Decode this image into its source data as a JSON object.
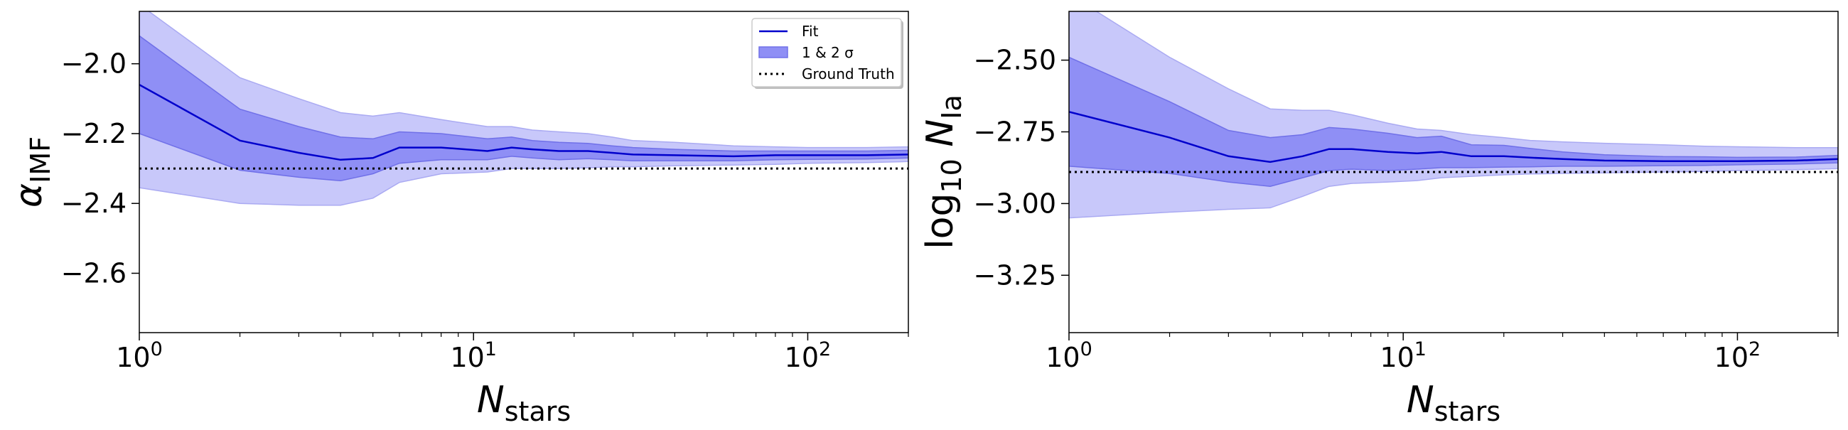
{
  "chart_data": [
    {
      "type": "line",
      "xlabel": "N_stars",
      "ylabel": "α_IMF",
      "x_scale": "log",
      "xlim": [
        1,
        200
      ],
      "ylim": [
        -2.77,
        -1.85
      ],
      "x_ticks": [
        1,
        10,
        100
      ],
      "x_tick_labels": [
        "10^0",
        "10^1",
        "10^2"
      ],
      "y_ticks": [
        -2.0,
        -2.2,
        -2.4,
        -2.6
      ],
      "y_tick_labels": [
        "−2.0",
        "−2.2",
        "−2.4",
        "−2.6"
      ],
      "ground_truth": -2.3,
      "x": [
        1,
        2,
        3,
        4,
        5,
        6,
        8,
        11,
        13,
        15,
        18,
        22,
        26,
        30,
        40,
        60,
        80,
        100,
        150,
        200
      ],
      "series": [
        {
          "name": "Fit",
          "kind": "line",
          "values": [
            -2.06,
            -2.22,
            -2.255,
            -2.275,
            -2.27,
            -2.24,
            -2.24,
            -2.25,
            -2.24,
            -2.245,
            -2.25,
            -2.25,
            -2.255,
            -2.26,
            -2.262,
            -2.265,
            -2.262,
            -2.262,
            -2.262,
            -2.26
          ]
        },
        {
          "name": "1 & 2 σ",
          "kind": "band",
          "lower": [
            -2.2,
            -2.305,
            -2.325,
            -2.335,
            -2.315,
            -2.285,
            -2.275,
            -2.275,
            -2.265,
            -2.27,
            -2.275,
            -2.272,
            -2.275,
            -2.278,
            -2.278,
            -2.278,
            -2.275,
            -2.274,
            -2.273,
            -2.27
          ],
          "upper": [
            -1.92,
            -2.13,
            -2.18,
            -2.21,
            -2.215,
            -2.195,
            -2.2,
            -2.215,
            -2.21,
            -2.22,
            -2.225,
            -2.228,
            -2.235,
            -2.24,
            -2.245,
            -2.25,
            -2.25,
            -2.25,
            -2.25,
            -2.248
          ]
        },
        {
          "name": "2σ",
          "kind": "band",
          "lower": [
            -2.355,
            -2.4,
            -2.405,
            -2.405,
            -2.385,
            -2.34,
            -2.315,
            -2.31,
            -2.3,
            -2.3,
            -2.3,
            -2.298,
            -2.295,
            -2.295,
            -2.292,
            -2.29,
            -2.288,
            -2.285,
            -2.283,
            -2.28
          ],
          "upper": [
            -1.83,
            -2.04,
            -2.1,
            -2.14,
            -2.15,
            -2.14,
            -2.16,
            -2.18,
            -2.18,
            -2.19,
            -2.195,
            -2.2,
            -2.21,
            -2.22,
            -2.225,
            -2.235,
            -2.238,
            -2.24,
            -2.24,
            -2.238
          ]
        }
      ],
      "legend": {
        "placement": "top-right",
        "entries": [
          {
            "label": "Fit",
            "kind": "line"
          },
          {
            "label": "1 & 2 σ",
            "kind": "patch"
          },
          {
            "label": "Ground Truth",
            "kind": "dotted"
          }
        ]
      }
    },
    {
      "type": "line",
      "xlabel": "N_stars",
      "ylabel": "log10 N_Ia",
      "x_scale": "log",
      "xlim": [
        1,
        200
      ],
      "ylim": [
        -3.45,
        -2.33
      ],
      "x_ticks": [
        1,
        10,
        100
      ],
      "x_tick_labels": [
        "10^0",
        "10^1",
        "10^2"
      ],
      "y_ticks": [
        -2.5,
        -2.75,
        -3.0,
        -3.25
      ],
      "y_tick_labels": [
        "−2.50",
        "−2.75",
        "−3.00",
        "−3.25"
      ],
      "ground_truth": -2.89,
      "x": [
        1,
        2,
        3,
        4,
        5,
        6,
        7,
        9,
        11,
        13,
        16,
        20,
        24,
        30,
        40,
        60,
        80,
        100,
        150,
        200
      ],
      "series": [
        {
          "name": "Fit",
          "kind": "line",
          "values": [
            -2.68,
            -2.77,
            -2.835,
            -2.855,
            -2.835,
            -2.81,
            -2.81,
            -2.82,
            -2.825,
            -2.82,
            -2.835,
            -2.835,
            -2.84,
            -2.845,
            -2.85,
            -2.852,
            -2.852,
            -2.852,
            -2.85,
            -2.845
          ]
        },
        {
          "name": "1 & 2 σ",
          "kind": "band",
          "lower": [
            -2.87,
            -2.895,
            -2.925,
            -2.94,
            -2.91,
            -2.885,
            -2.88,
            -2.885,
            -2.88,
            -2.875,
            -2.875,
            -2.873,
            -2.872,
            -2.87,
            -2.87,
            -2.868,
            -2.867,
            -2.865,
            -2.862,
            -2.858
          ]
        },
        {
          "name": "2σ",
          "kind": "band",
          "lower": [
            -3.05,
            -3.03,
            -3.02,
            -3.015,
            -2.975,
            -2.94,
            -2.93,
            -2.925,
            -2.92,
            -2.91,
            -2.905,
            -2.9,
            -2.897,
            -2.895,
            -2.893,
            -2.89,
            -2.888,
            -2.885,
            -2.882,
            -2.878
          ],
          "upper": [
            -2.27,
            -2.49,
            -2.6,
            -2.67,
            -2.675,
            -2.675,
            -2.69,
            -2.72,
            -2.74,
            -2.745,
            -2.76,
            -2.77,
            -2.78,
            -2.785,
            -2.79,
            -2.795,
            -2.8,
            -2.802,
            -2.805,
            -2.805
          ]
        }
      ]
    }
  ]
}
